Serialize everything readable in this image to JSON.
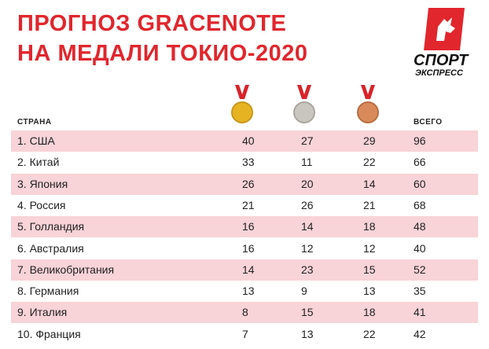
{
  "header": {
    "title_lines": [
      "ПРОГНОЗ GRACENOTE",
      "НА МЕДАЛИ ТОКИО-2020"
    ]
  },
  "logo": {
    "lines": [
      "СПОРТ",
      "ЭКСПРЕСС"
    ]
  },
  "table": {
    "columns": {
      "country": "СТРАНА",
      "total": "ВСЕГО"
    },
    "rows": [
      [
        "1. США",
        40,
        27,
        29,
        96
      ],
      [
        "2. Китай",
        33,
        11,
        22,
        66
      ],
      [
        "3. Япония",
        26,
        20,
        14,
        60
      ],
      [
        "4. Россия",
        21,
        26,
        21,
        68
      ],
      [
        "5. Голландия",
        16,
        14,
        18,
        48
      ],
      [
        "6. Австралия",
        16,
        12,
        12,
        40
      ],
      [
        "7. Великобритания",
        14,
        23,
        15,
        52
      ],
      [
        "8. Германия",
        13,
        9,
        13,
        35
      ],
      [
        "9. Италия",
        8,
        15,
        18,
        41
      ],
      [
        "10. Франция",
        7,
        13,
        22,
        42
      ]
    ]
  }
}
